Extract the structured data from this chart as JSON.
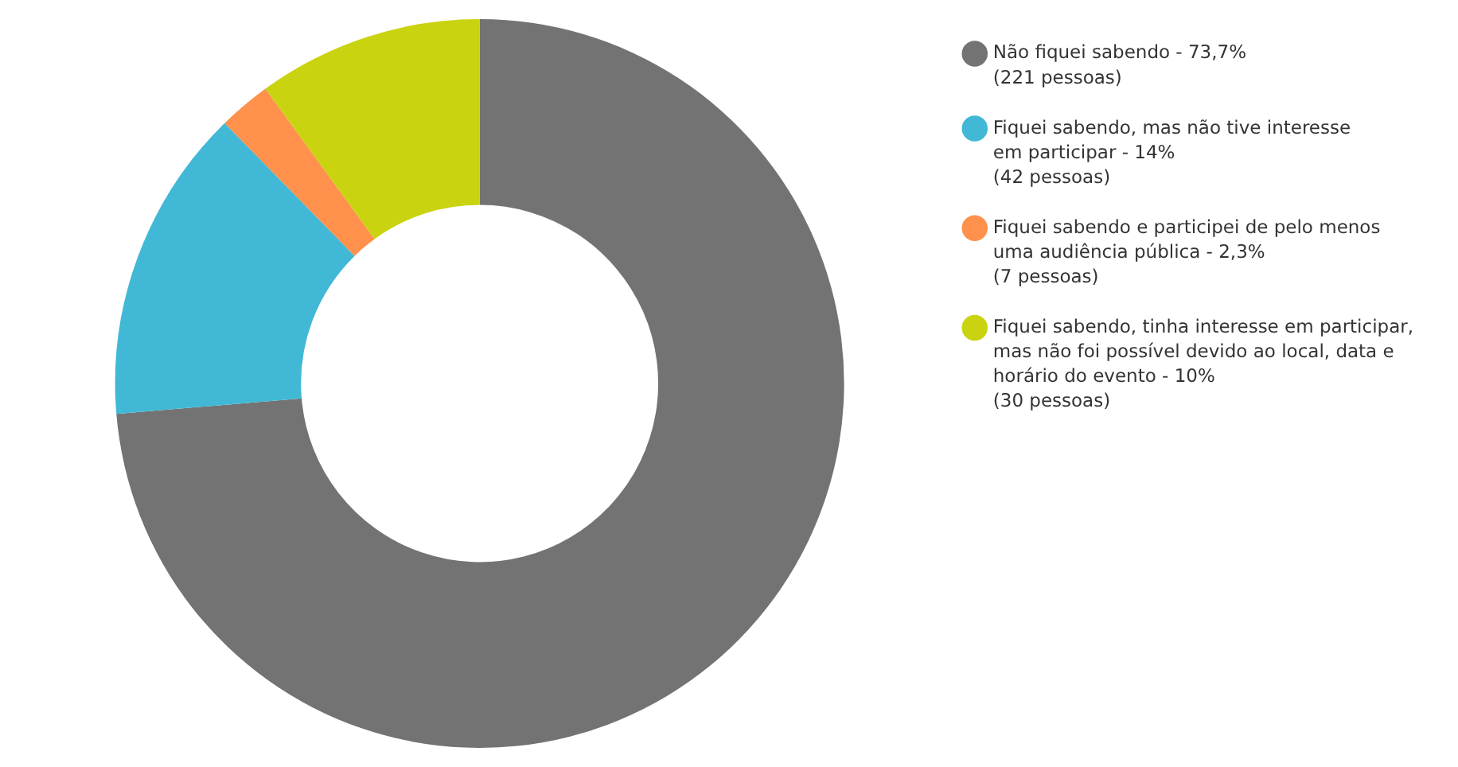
{
  "chart_data": {
    "type": "donut",
    "categories": [
      "Não fiquei sabendo - 73,7%\n(221 pessoas)",
      "Fiquei sabendo, mas não tive interesse\nem participar - 14%\n(42 pessoas)",
      "Fiquei sabendo e participei de pelo menos\numa audiência pública - 2,3%\n(7 pessoas)",
      "Fiquei sabendo, tinha interesse em participar,\nmas não foi possível devido ao local, data e\nhorário do evento - 10%\n(30 pessoas)"
    ],
    "values": [
      221,
      42,
      7,
      30
    ],
    "colors": [
      "#737373",
      "#41b8d5",
      "#ff914d",
      "#c9d30f"
    ],
    "legend": "right"
  }
}
